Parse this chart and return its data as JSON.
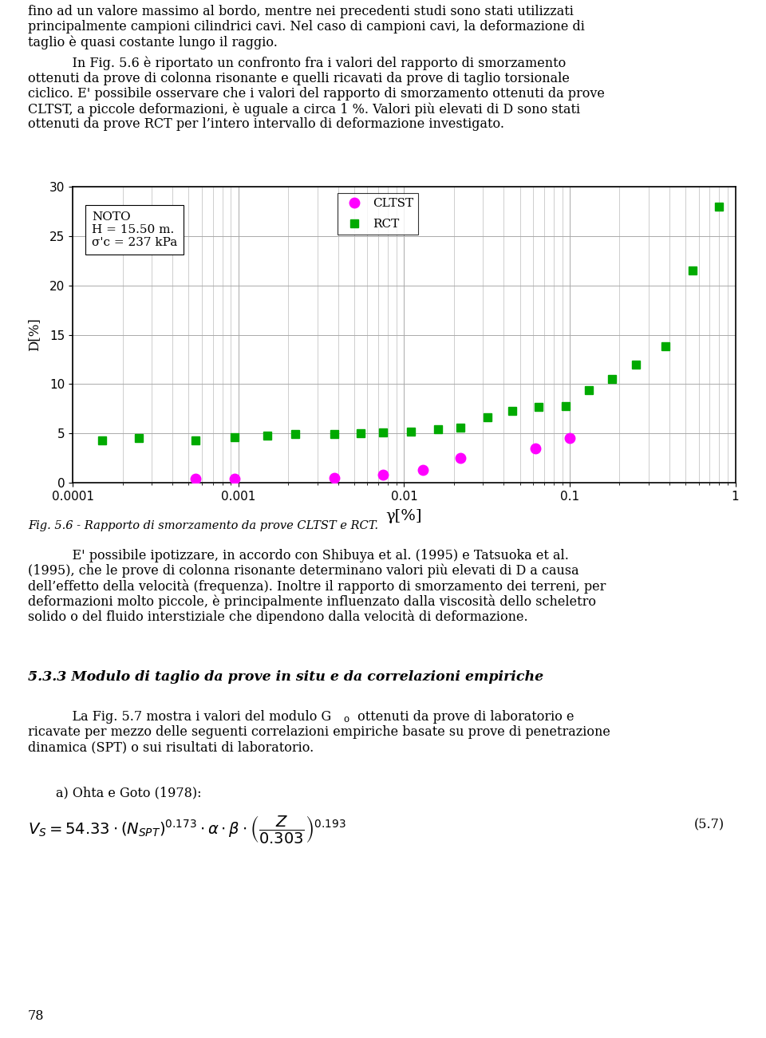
{
  "title": "",
  "xlabel": "γ[%]",
  "ylabel": "D[%]",
  "ylim": [
    0,
    30
  ],
  "xlim": [
    0.0001,
    1
  ],
  "yticks": [
    0,
    5,
    10,
    15,
    20,
    25,
    30
  ],
  "xticks": [
    0.0001,
    0.001,
    0.01,
    0.1,
    1
  ],
  "xtick_labels": [
    "0.0001",
    "0.001",
    "0.01",
    "0.1",
    "1"
  ],
  "legend_text1": "NOTO",
  "legend_text2": "H = 15.50 m.",
  "legend_text3": "σ'c = 237 kPa",
  "cltst_label": "CLTST",
  "rct_label": "RCT",
  "cltst_color": "#FF00FF",
  "rct_color": "#00AA00",
  "cltst_x": [
    0.00055,
    0.00095,
    0.0038,
    0.0075,
    0.013,
    0.022,
    0.062,
    0.1
  ],
  "cltst_y": [
    0.4,
    0.4,
    0.5,
    0.8,
    1.3,
    2.5,
    3.5,
    4.5
  ],
  "rct_x": [
    0.00015,
    0.00025,
    0.00055,
    0.00095,
    0.0015,
    0.0022,
    0.0038,
    0.0055,
    0.0075,
    0.011,
    0.016,
    0.022,
    0.032,
    0.045,
    0.065,
    0.095,
    0.13,
    0.18,
    0.25,
    0.38,
    0.55,
    0.8
  ],
  "rct_y": [
    4.3,
    4.5,
    4.3,
    4.6,
    4.8,
    4.9,
    4.9,
    5.0,
    5.1,
    5.2,
    5.4,
    5.6,
    6.6,
    7.3,
    7.7,
    7.8,
    9.4,
    10.5,
    12.0,
    13.8,
    21.5,
    28.0
  ],
  "fig_caption": "Fig. 5.6 - Rapporto di smorzamento da prove CLTST e RCT.",
  "background_color": "#ffffff",
  "grid_color": "#aaaaaa",
  "text_color": "#000000",
  "fig_width": 9.6,
  "fig_height": 13.01,
  "top_text_line1": "fino ad un valore massimo al bordo, mentre nei precedenti studi sono stati utilizzati",
  "top_text_line2": "principalmente campioni cilindrici cavi. Nel caso di campioni cavi, la deformazione di",
  "top_text_line3": "taglio è quasi costante lungo il raggio.",
  "top_text_line4": "    In Fig. 5.6 è riportato un confronto fra i valori del rapporto di smorzamento",
  "top_text_line5": "ottenuti da prove di colonna risonante e quelli ricavati da prove di taglio torsionale",
  "top_text_line6": "ciclico. E' possibile osservare che i valori del rapporto di smorzamento ottenuti da prove",
  "top_text_line7": "CLTST, a piccole deformazioni, è uguale a circa 1 %. Valori più elevati di D sono stati",
  "top_text_line8": "ottenuti da prove RCT per l’intero intervallo di deformazione investigato.",
  "bottom_text_line1": "    E' possibile ipotizzare, in accordo con Shibuya et al. (1995) e Tatsuoka et al.",
  "bottom_text_line2": "(1995), che le prove di colonna risonante determinano valori più elevati di D a causa",
  "bottom_text_line3": "dell’effetto della velocità (frequenza). Inoltre il rapporto di smorzamento dei terreni, per",
  "bottom_text_line4": "deformazioni molto piccole, è principalmente influenzato dalla viscosità dello scheletro",
  "bottom_text_line5": "solido o del fluido interstiziale che dipendono dalla velocità di deformazione.",
  "section_heading": "5.3.3 Modulo di taglio da prove in situ e da correlazioni empiriche",
  "para_line1": "    La Fig. 5.7 mostra i valori del modulo G",
  "para_line1b": "o",
  "para_line1c": " ottenuti da prove di laboratorio e",
  "para_line2": "ricavate per mezzo delle seguenti correlazioni empiriche basate su prove di penetrazione",
  "para_line3": "dinamica (SPT) o sui risultati di laboratorio.",
  "ohta_label": "a) Ohta e Goto (1978):",
  "equation_label": "(5.7)",
  "page_number": "78"
}
